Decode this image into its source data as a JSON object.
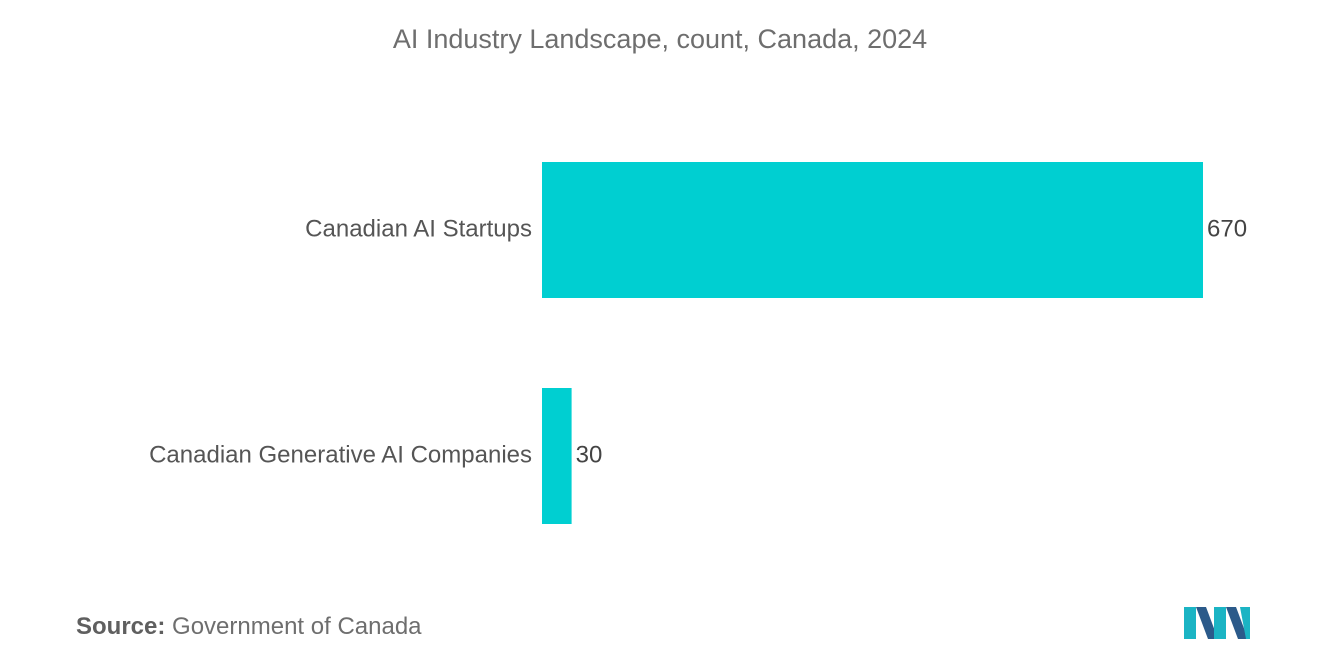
{
  "title": "AI Industry Landscape, count, Canada, 2024",
  "source": {
    "label": "Source:",
    "text": "Government of Canada"
  },
  "logo_icon": "mordor-intelligence-logo",
  "colors": {
    "bar": "#00CFD1",
    "logo_teal": "#1BB4C4",
    "logo_dark": "#2B5A8A"
  },
  "chart_data": {
    "type": "bar",
    "orientation": "horizontal",
    "title": "AI Industry Landscape, count, Canada, 2024",
    "categories": [
      "Canadian AI Startups",
      "Canadian Generative AI Companies"
    ],
    "values": [
      670,
      30
    ],
    "value_labels": [
      "670",
      "30"
    ],
    "xlim": [
      0,
      670
    ],
    "grid": false,
    "legend": "none"
  }
}
